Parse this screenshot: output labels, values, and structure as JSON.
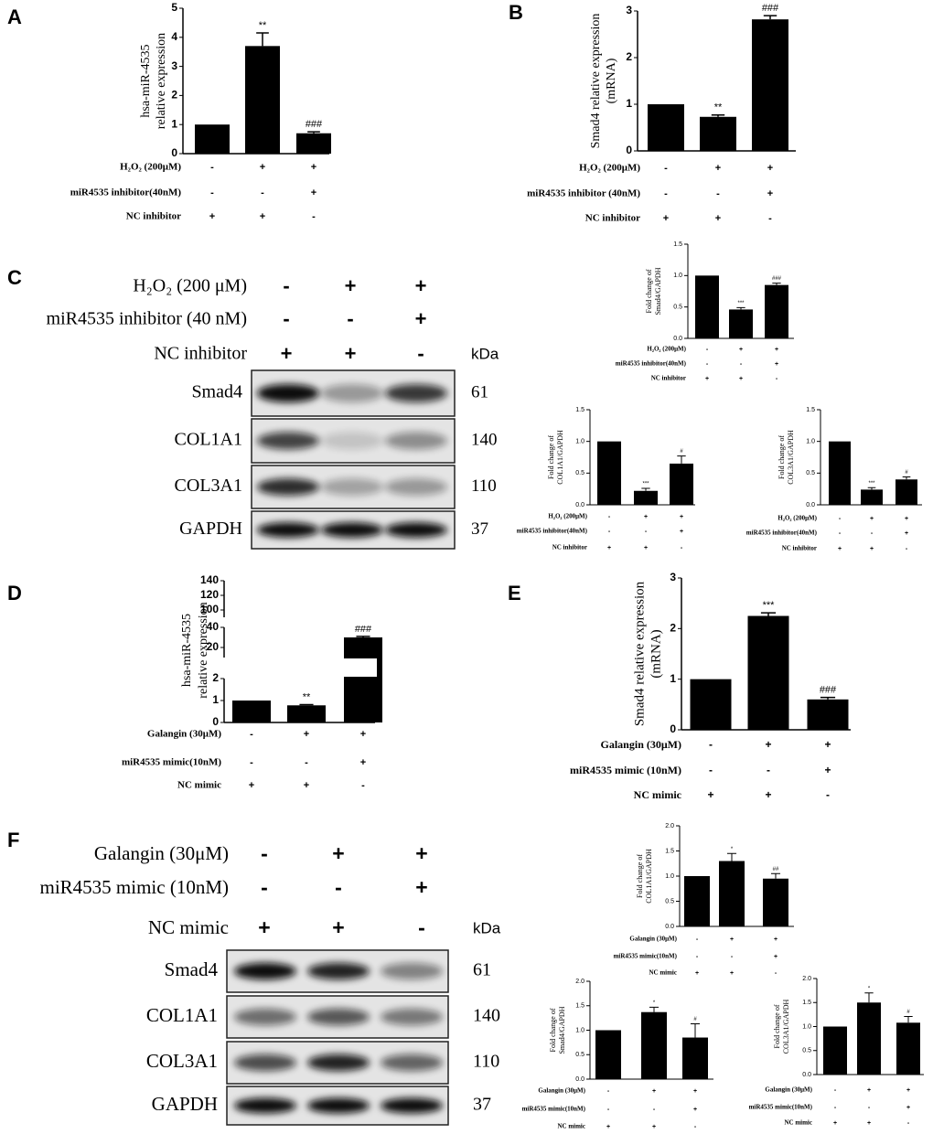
{
  "chart_data": [
    {
      "type": "bar",
      "label": "A",
      "ylabel": [
        "hsa-miR-4535",
        "relative expression"
      ],
      "color": "#000000",
      "values": [
        1,
        3.7,
        0.7
      ],
      "errors": [
        0,
        0.45,
        0.05
      ],
      "annotations": [
        null,
        "**",
        "###"
      ],
      "ylim": [
        0,
        5
      ],
      "yticks": [
        0,
        1,
        2,
        3,
        4,
        5
      ],
      "conditions": [
        {
          "name": "H₂O₂ (200μM)",
          "signs": [
            "-",
            "+",
            "+"
          ]
        },
        {
          "name": "miR4535 inhibitor(40nM)",
          "signs": [
            "-",
            "-",
            "+"
          ]
        },
        {
          "name": "NC inhibitor",
          "signs": [
            "+",
            "+",
            "-"
          ]
        }
      ]
    },
    {
      "type": "bar",
      "label": "B",
      "ylabel": [
        "Smad4 relative expression",
        "(mRNA)"
      ],
      "color": "#000000",
      "values": [
        1,
        0.73,
        2.82
      ],
      "errors": [
        0,
        0.04,
        0.08
      ],
      "annotations": [
        null,
        "**",
        "###"
      ],
      "ylim": [
        0,
        3
      ],
      "yticks": [
        0,
        1,
        2,
        3
      ],
      "conditions": [
        {
          "name": "H₂O₂ (200μM)",
          "signs": [
            "-",
            "+",
            "+"
          ]
        },
        {
          "name": "miR4535 inhibitor (40nM)",
          "signs": [
            "-",
            "-",
            "+"
          ]
        },
        {
          "name": "NC inhibitor",
          "signs": [
            "+",
            "+",
            "-"
          ]
        }
      ]
    },
    {
      "type": "bar",
      "ylabel": [
        "Fold change of",
        "Smad4/GAPDH"
      ],
      "color": "#000000",
      "values": [
        1,
        0.46,
        0.85
      ],
      "errors": [
        0,
        0.03,
        0.03
      ],
      "annotations": [
        null,
        "***",
        "###"
      ],
      "ylim": [
        0,
        1.5
      ],
      "yticks": [
        {
          "value": 0,
          "label": "0.0"
        },
        {
          "value": 0.5,
          "label": "0.5"
        },
        {
          "value": 1,
          "label": "1.0"
        },
        {
          "value": 1.5,
          "label": "1.5"
        }
      ],
      "conditions": [
        {
          "name": "H₂O₂ (200μM)",
          "signs": [
            "-",
            "+",
            "+"
          ]
        },
        {
          "name": "miR4535 inhibitor(40nM)",
          "signs": [
            "-",
            "-",
            "+"
          ]
        },
        {
          "name": "NC inhibitor",
          "signs": [
            "+",
            "+",
            "-"
          ]
        }
      ]
    },
    {
      "type": "bar",
      "ylabel": [
        "Fold change of",
        "COL1A1/GAPDH"
      ],
      "color": "#000000",
      "values": [
        1,
        0.22,
        0.65
      ],
      "errors": [
        0,
        0.04,
        0.12
      ],
      "annotations": [
        null,
        "***",
        "#"
      ],
      "ylim": [
        0,
        1.5
      ],
      "yticks": [
        {
          "value": 0,
          "label": "0.0"
        },
        {
          "value": 0.5,
          "label": "0.5"
        },
        {
          "value": 1,
          "label": "1.0"
        },
        {
          "value": 1.5,
          "label": "1.5"
        }
      ],
      "conditions": [
        {
          "name": "H₂O₂ (200μM)",
          "signs": [
            "-",
            "+",
            "+"
          ]
        },
        {
          "name": "miR4535 inhibitor(40nM)",
          "signs": [
            "-",
            "-",
            "+"
          ]
        },
        {
          "name": "NC inhibitor",
          "signs": [
            "+",
            "+",
            "-"
          ]
        }
      ]
    },
    {
      "type": "bar",
      "ylabel": [
        "Fold change of",
        "COL3A1/GAPDH"
      ],
      "color": "#000000",
      "values": [
        1,
        0.24,
        0.4
      ],
      "errors": [
        0,
        0.03,
        0.04
      ],
      "annotations": [
        null,
        "***",
        "#"
      ],
      "ylim": [
        0,
        1.5
      ],
      "yticks": [
        {
          "value": 0,
          "label": "0.0"
        },
        {
          "value": 0.5,
          "label": "0.5"
        },
        {
          "value": 1,
          "label": "1.0"
        },
        {
          "value": 1.5,
          "label": "1.5"
        }
      ],
      "conditions": [
        {
          "name": "H₂O₂ (200μM)",
          "signs": [
            "-",
            "+",
            "+"
          ]
        },
        {
          "name": "miR4535 inhibitor(40nM)",
          "signs": [
            "-",
            "-",
            "+"
          ]
        },
        {
          "name": "NC inhibitor",
          "signs": [
            "+",
            "+",
            "-"
          ]
        }
      ]
    },
    {
      "type": "bar",
      "label": "D",
      "ylabel": [
        "hsa-miR-4535",
        "relative expression"
      ],
      "color": "#000000",
      "values": [
        1,
        0.78,
        30
      ],
      "errors": [
        0,
        0.03,
        1
      ],
      "annotations": [
        null,
        "**",
        "###"
      ],
      "ylim": [
        0,
        140
      ],
      "ylim_segments": [
        [
          0,
          2
        ],
        [
          10,
          40
        ],
        [
          90,
          140
        ]
      ],
      "yticks": [
        0,
        1,
        2,
        20,
        40,
        100,
        120,
        140
      ],
      "conditions": [
        {
          "name": "Galangin (30μM)",
          "signs": [
            "-",
            "+",
            "+"
          ]
        },
        {
          "name": "miR4535 mimic(10nM)",
          "signs": [
            "-",
            "-",
            "+"
          ]
        },
        {
          "name": "NC mimic",
          "signs": [
            "+",
            "+",
            "-"
          ]
        }
      ]
    },
    {
      "type": "bar",
      "label": "E",
      "ylabel": [
        "Smad4 relative expression",
        "(mRNA)"
      ],
      "color": "#000000",
      "values": [
        1,
        2.25,
        0.6
      ],
      "errors": [
        0,
        0.06,
        0.04
      ],
      "annotations": [
        null,
        "***",
        "###"
      ],
      "ylim": [
        0,
        3
      ],
      "yticks": [
        0,
        1,
        2,
        3
      ],
      "conditions": [
        {
          "name": "Galangin (30μM)",
          "signs": [
            "-",
            "+",
            "+"
          ]
        },
        {
          "name": "miR4535 mimic (10nM)",
          "signs": [
            "-",
            "-",
            "+"
          ]
        },
        {
          "name": "NC mimic",
          "signs": [
            "+",
            "+",
            "-"
          ]
        }
      ]
    },
    {
      "type": "bar",
      "ylabel": [
        "Fold change of",
        "COL1A1/GAPDH"
      ],
      "color": "#000000",
      "values": [
        1,
        1.3,
        0.95
      ],
      "errors": [
        0,
        0.15,
        0.1
      ],
      "annotations": [
        null,
        "*",
        "##"
      ],
      "ylim": [
        0,
        2
      ],
      "yticks": [
        {
          "value": 0,
          "label": "0.0"
        },
        {
          "value": 0.5,
          "label": "0.5"
        },
        {
          "value": 1,
          "label": "1.0"
        },
        {
          "value": 1.5,
          "label": "1.5"
        },
        {
          "value": 2,
          "label": "2.0"
        }
      ],
      "conditions": [
        {
          "name": "Galangin (30μM)",
          "signs": [
            "-",
            "+",
            "+"
          ]
        },
        {
          "name": "miR4535 mimic(10nM)",
          "signs": [
            "-",
            "-",
            "+"
          ]
        },
        {
          "name": "NC mimic",
          "signs": [
            "+",
            "+",
            "-"
          ]
        }
      ]
    },
    {
      "type": "bar",
      "ylabel": [
        "Fold change of",
        "Smad4/GAPDH"
      ],
      "color": "#000000",
      "values": [
        1,
        1.37,
        0.85
      ],
      "errors": [
        0,
        0.1,
        0.28
      ],
      "annotations": [
        null,
        "*",
        "#"
      ],
      "ylim": [
        0,
        2
      ],
      "yticks": [
        {
          "value": 0,
          "label": "0.0"
        },
        {
          "value": 0.5,
          "label": "0.5"
        },
        {
          "value": 1,
          "label": "1.0"
        },
        {
          "value": 1.5,
          "label": "1.5"
        },
        {
          "value": 2,
          "label": "2.0"
        }
      ],
      "conditions": [
        {
          "name": "Galangin (30μM)",
          "signs": [
            "-",
            "+",
            "+"
          ]
        },
        {
          "name": "miR4535 mimic(10nM)",
          "signs": [
            "-",
            "-",
            "+"
          ]
        },
        {
          "name": "NC mimic",
          "signs": [
            "+",
            "+",
            "-"
          ]
        }
      ]
    },
    {
      "type": "bar",
      "ylabel": [
        "Fold change of",
        "COL3A1/GAPDH"
      ],
      "color": "#000000",
      "values": [
        1,
        1.5,
        1.08
      ],
      "errors": [
        0,
        0.2,
        0.13
      ],
      "annotations": [
        null,
        "*",
        "#"
      ],
      "ylim": [
        0,
        2
      ],
      "yticks": [
        {
          "value": 0,
          "label": "0.0"
        },
        {
          "value": 0.5,
          "label": "0.5"
        },
        {
          "value": 1,
          "label": "1.0"
        },
        {
          "value": 1.5,
          "label": "1.5"
        },
        {
          "value": 2,
          "label": "2.0"
        }
      ],
      "conditions": [
        {
          "name": "Galangin (30μM)",
          "signs": [
            "-",
            "+",
            "+"
          ]
        },
        {
          "name": "miR4535 mimic(10nM)",
          "signs": [
            "-",
            "-",
            "+"
          ]
        },
        {
          "name": "NC mimic",
          "signs": [
            "+",
            "+",
            "-"
          ]
        }
      ]
    }
  ],
  "blots": [
    {
      "label": "C",
      "unit": "kDa",
      "conditions": [
        {
          "name": "H₂O₂ (200 μM)",
          "signs": [
            "-",
            "+",
            "+"
          ]
        },
        {
          "name": "miR4535 inhibitor (40 nM)",
          "signs": [
            "-",
            "-",
            "+"
          ]
        },
        {
          "name": "NC inhibitor",
          "signs": [
            "+",
            "+",
            "-"
          ]
        }
      ],
      "proteins": [
        {
          "name": "Smad4",
          "kda": 61
        },
        {
          "name": "COL1A1",
          "kda": 140
        },
        {
          "name": "COL3A1",
          "kda": 110
        },
        {
          "name": "GAPDH",
          "kda": 37
        }
      ]
    },
    {
      "label": "F",
      "unit": "kDa",
      "conditions": [
        {
          "name": "Galangin (30μM)",
          "signs": [
            "-",
            "+",
            "+"
          ]
        },
        {
          "name": "miR4535 mimic (10nM)",
          "signs": [
            "-",
            "-",
            "+"
          ]
        },
        {
          "name": "NC mimic",
          "signs": [
            "+",
            "+",
            "-"
          ]
        }
      ],
      "proteins": [
        {
          "name": "Smad4",
          "kda": 61
        },
        {
          "name": "COL1A1",
          "kda": 140
        },
        {
          "name": "COL3A1",
          "kda": 110
        },
        {
          "name": "GAPDH",
          "kda": 37
        }
      ]
    }
  ]
}
